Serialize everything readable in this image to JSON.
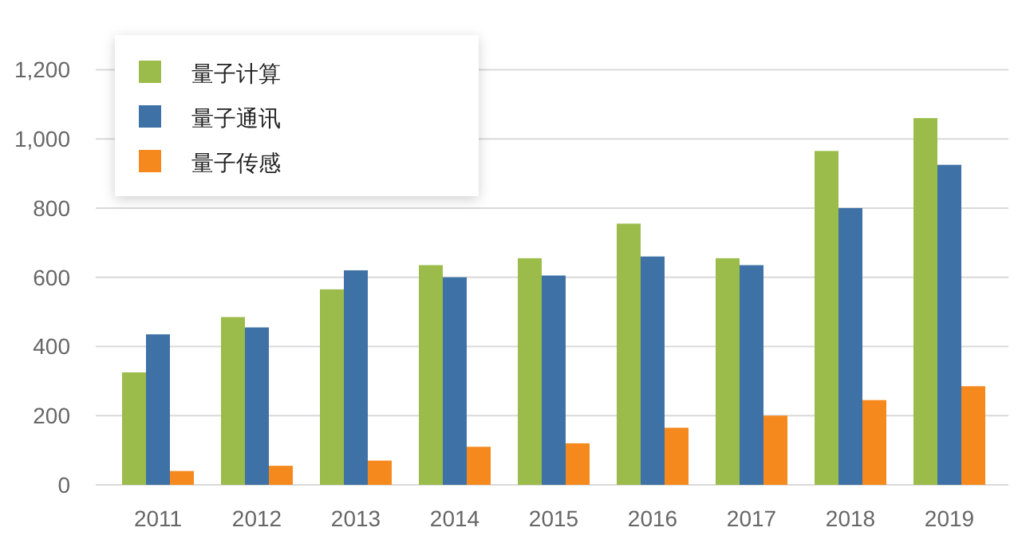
{
  "chart_data": {
    "type": "bar",
    "categories": [
      "2011",
      "2012",
      "2013",
      "2014",
      "2015",
      "2016",
      "2017",
      "2018",
      "2019"
    ],
    "series": [
      {
        "name": "量子计算",
        "color": "#9bbb4a",
        "values": [
          325,
          485,
          565,
          635,
          655,
          755,
          655,
          965,
          1060
        ]
      },
      {
        "name": "量子通讯",
        "color": "#3e72a6",
        "values": [
          435,
          455,
          620,
          600,
          605,
          660,
          635,
          800,
          925
        ]
      },
      {
        "name": "量子传感",
        "color": "#f5891e",
        "values": [
          40,
          55,
          70,
          110,
          120,
          165,
          200,
          245,
          285
        ]
      }
    ],
    "ylim": [
      0,
      1300
    ],
    "yticks": [
      0,
      {
        "value": 200,
        "label": "200"
      },
      {
        "value": 400,
        "label": "400"
      },
      {
        "value": 600,
        "label": "600"
      },
      {
        "value": 800,
        "label": "800"
      },
      {
        "value": 1000,
        "label": "1,000"
      },
      {
        "value": 1200,
        "label": "1,200"
      }
    ],
    "grid": "y",
    "legend": "top left"
  }
}
